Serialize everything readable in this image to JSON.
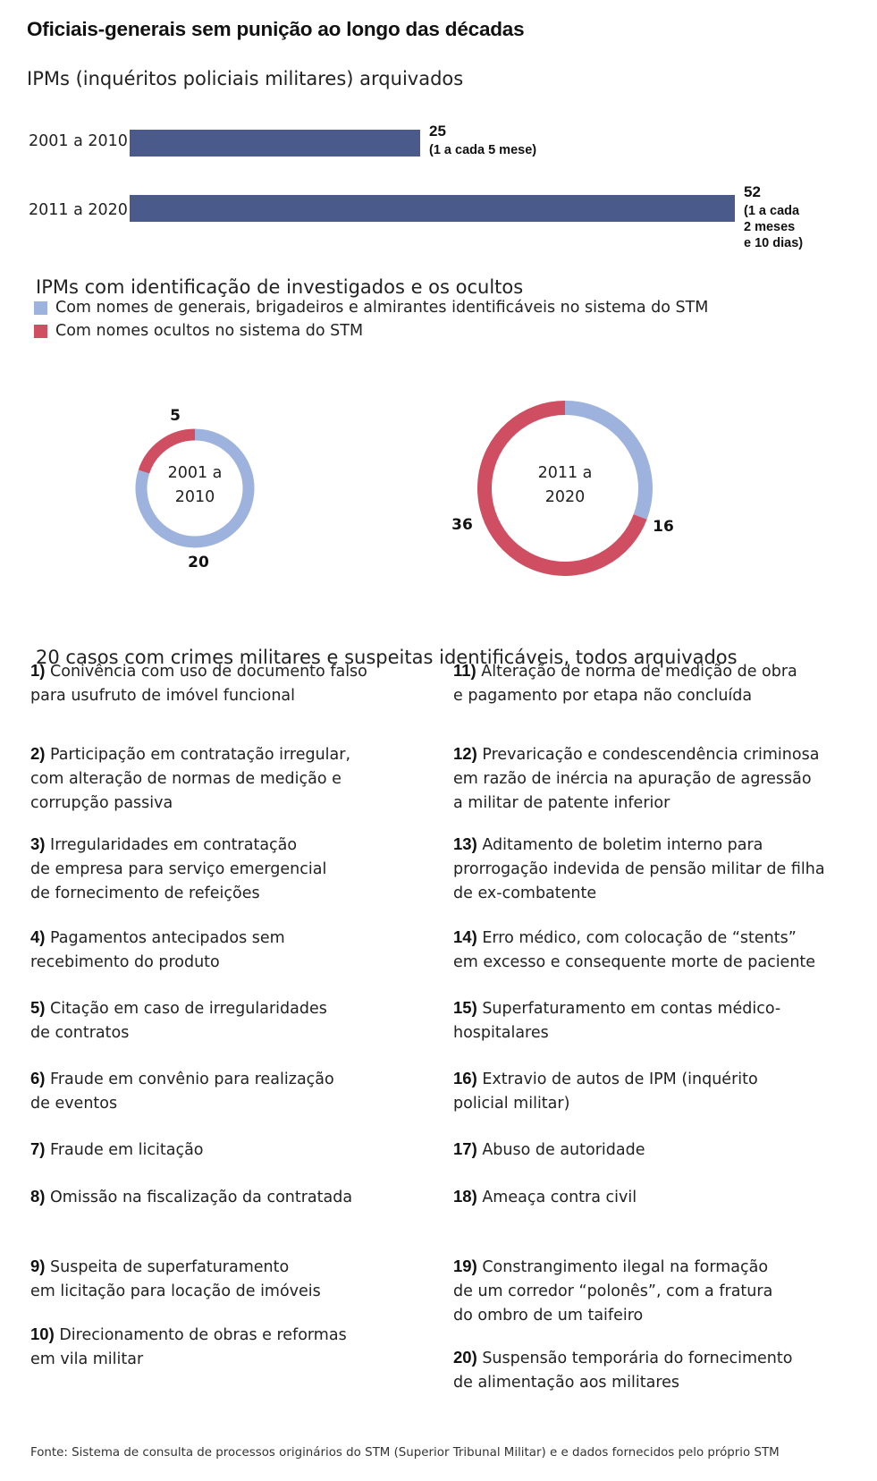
{
  "title": "Oficiais-generais sem punição ao longo das décadas",
  "colors": {
    "bar": "#4a5a8a",
    "identified": "#9db2dc",
    "hidden": "#d04e62"
  },
  "chart_data": [
    {
      "type": "bar",
      "orientation": "horizontal",
      "title": "IPMs (inquéritos policiais militares) arquivados",
      "categories": [
        "2001 a 2010",
        "2011 a 2020"
      ],
      "values": [
        25,
        52
      ],
      "labels": [
        {
          "value": "25",
          "note": "(1 a cada 5 mese)"
        },
        {
          "value": "52",
          "note": "(1 a cada\n2 meses\ne 10 dias)"
        }
      ],
      "xlim": [
        0,
        52
      ]
    },
    {
      "type": "pie",
      "style": "donut",
      "title": "IPMs com identificação de investigados e os ocultos",
      "legend": [
        "Com nomes de generais, brigadeiros e almirantes identificáveis no sistema do STM",
        "Com nomes ocultos no sistema do STM"
      ],
      "charts": [
        {
          "center_label": "2001 a\n2010",
          "identified": 20,
          "hidden": 5
        },
        {
          "center_label": "2011 a\n2020",
          "identified": 16,
          "hidden": 36
        }
      ]
    }
  ],
  "cases": {
    "title": "20 casos com crimes militares e suspeitas identificáveis, todos arquivados",
    "left": [
      {
        "num": "1)",
        "text": "Conivência com uso de documento falso\npara usufruto de imóvel funcional"
      },
      {
        "num": "2)",
        "text": "Participação em contratação irregular,\ncom alteração de normas de medição e\ncorrupção passiva"
      },
      {
        "num": "3)",
        "text": "Irregularidades em contratação\nde empresa para serviço emergencial\nde fornecimento de refeições"
      },
      {
        "num": "4)",
        "text": "Pagamentos antecipados sem\nrecebimento do produto"
      },
      {
        "num": "5)",
        "text": "Citação em caso de irregularidades\nde contratos"
      },
      {
        "num": "6)",
        "text": "Fraude em convênio para realização\nde eventos"
      },
      {
        "num": "7)",
        "text": "Fraude em licitação"
      },
      {
        "num": "8)",
        "text": "Omissão na fiscalização da contratada"
      },
      {
        "num": "9)",
        "text": "Suspeita de superfaturamento\nem licitação para locação de imóveis"
      },
      {
        "num": "10)",
        "text": "Direcionamento de obras e reformas\nem vila militar"
      }
    ],
    "right": [
      {
        "num": "11)",
        "text": "Alteração de norma de medição de obra\ne pagamento por etapa não concluída"
      },
      {
        "num": "12)",
        "text": "Prevaricação e condescendência criminosa\nem razão de inércia na apuração de agressão\na militar de patente inferior"
      },
      {
        "num": "13)",
        "text": "Aditamento de boletim interno para\nprorrogação indevida de pensão militar de filha\nde ex-combatente"
      },
      {
        "num": "14)",
        "text": "Erro médico, com colocação de “stents”\nem excesso e consequente morte de paciente"
      },
      {
        "num": "15)",
        "text": "Superfaturamento em contas médico-\nhospitalares"
      },
      {
        "num": "16)",
        "text": "Extravio de autos de IPM (inquérito\npolicial militar)"
      },
      {
        "num": "17)",
        "text": "Abuso de autoridade"
      },
      {
        "num": "18)",
        "text": "Ameaça contra civil"
      },
      {
        "num": "19)",
        "text": "Constrangimento ilegal na formação\nde um corredor “polonês”, com a fratura\ndo ombro de um taifeiro"
      },
      {
        "num": "20)",
        "text": "Suspensão temporária do fornecimento\nde alimentação aos militares"
      }
    ]
  },
  "source": "Fonte: Sistema de consulta de processos originários do STM (Superior Tribunal Militar) e e dados fornecidos pelo próprio STM"
}
